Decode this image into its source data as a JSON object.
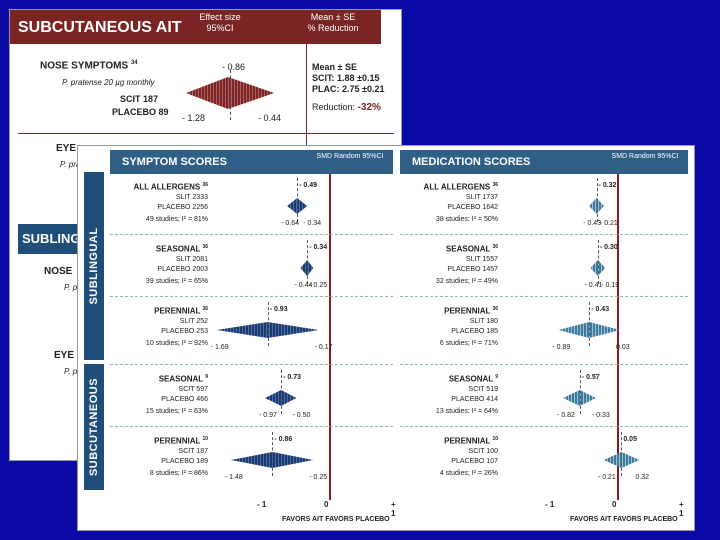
{
  "back_slide": {
    "title": "SUBCUTANEOUS AIT",
    "col1": "Effect size",
    "col1b": "95%CI",
    "col2": "Mean ± SE",
    "col2b": "% Reduction",
    "nose_title": "NOSE SYMPTOMS",
    "nose_ref": "34",
    "nose_species": "P. pratense 20 µg monthly",
    "nose_scit": "SCIT 187",
    "nose_placebo": "PLACEBO 89",
    "nose_es": "- 0.86",
    "nose_lo": "- 1.28",
    "nose_hi": "- 0.44",
    "stats_title": "Mean ± SE",
    "stats_scit": "SCIT: 1.88 ±0.15",
    "stats_plac": "PLAC: 2.75 ±0.21",
    "reduction_label": "Reduction:",
    "reduction_value": "-32%",
    "eye_title": "EYE",
    "eye_species": "P. prate",
    "subling_title": "SUBLING",
    "nose2": "NOSE",
    "pp1": "P. p",
    "eye2": "EYE",
    "pp2": "P. p"
  },
  "front_slide": {
    "side_top": "SUBLINGUAL",
    "side_bottom": "SUBCUTANEOUS",
    "favors_ait": "FAVORS AIT",
    "favors_placebo": "FAVORS PLACEBO"
  },
  "chart_data": [
    {
      "type": "forest",
      "title": "SYMPTOM SCORES",
      "subtitle": "SMD Random 95%CI",
      "xlim": [
        -1,
        1
      ],
      "x_ticks": [
        "- 1",
        "0",
        "+ 1"
      ],
      "rows": [
        {
          "group": "SUBLINGUAL",
          "label": "ALL ALLERGENS",
          "ref": "36",
          "n1": "SLIT 2333",
          "n2": "PLACEBO 2256",
          "studies": "49 studies; I² = 81%",
          "es": -0.49,
          "lo": -0.64,
          "hi": -0.34,
          "es_text": "- 0.49",
          "lo_text": "- 0.64",
          "hi_text": "- 0.34"
        },
        {
          "group": "SUBLINGUAL",
          "label": "SEASONAL",
          "ref": "36",
          "n1": "SLIT 2081",
          "n2": "PLACEBO 2003",
          "studies": "39 studies; I² = 65%",
          "es": -0.34,
          "lo": -0.44,
          "hi": -0.25,
          "es_text": "- 0.34",
          "lo_text": "- 0.44",
          "hi_text": "- 0.25"
        },
        {
          "group": "SUBLINGUAL",
          "label": "PERENNIAL",
          "ref": "36",
          "n1": "SLIT 252",
          "n2": "PLACEBO 253",
          "studies": "10 studies; I² = 92%",
          "es": -0.93,
          "lo": -1.69,
          "hi": -0.17,
          "es_text": "- 0.93",
          "lo_text": "- 1.69",
          "hi_text": "- 0.17"
        },
        {
          "group": "SUBCUTANEOUS",
          "label": "SEASONAL",
          "ref": "9",
          "n1": "SCIT 597",
          "n2": "PLACEBO 466",
          "studies": "15 studies; I² = 63%",
          "es": -0.73,
          "lo": -0.97,
          "hi": -0.5,
          "es_text": "- 0.73",
          "lo_text": "- 0.97",
          "hi_text": "- 0.50"
        },
        {
          "group": "SUBCUTANEOUS",
          "label": "PERENNIAL",
          "ref": "10",
          "n1": "SCIT 187",
          "n2": "PLACEBO 189",
          "studies": "8 studies; I² = 86%",
          "es": -0.86,
          "lo": -1.48,
          "hi": -0.25,
          "es_text": "- 0.86",
          "lo_text": "- 1.48",
          "hi_text": "- 0.25"
        }
      ]
    },
    {
      "type": "forest",
      "title": "MEDICATION SCORES",
      "subtitle": "SMD Random 95%CI",
      "xlim": [
        -1,
        1
      ],
      "x_ticks": [
        "- 1",
        "0",
        "+ 1"
      ],
      "rows": [
        {
          "group": "SUBLINGUAL",
          "label": "ALL ALLERGENS",
          "ref": "36",
          "n1": "SLIT 1737",
          "n2": "PLACEBO 1642",
          "studies": "38 studies; I² = 50%",
          "es": -0.32,
          "lo": -0.43,
          "hi": -0.21,
          "es_text": "- 0.32",
          "lo_text": "- 0.43",
          "hi_text": "- 0.21"
        },
        {
          "group": "SUBLINGUAL",
          "label": "SEASONAL",
          "ref": "36",
          "n1": "SLIT 1557",
          "n2": "PLACEBO 1457",
          "studies": "32 studies; I² = 49%",
          "es": -0.3,
          "lo": -0.41,
          "hi": -0.19,
          "es_text": "- 0.30",
          "lo_text": "- 0.41",
          "hi_text": "- 0.19"
        },
        {
          "group": "SUBLINGUAL",
          "label": "PERENNIAL",
          "ref": "36",
          "n1": "SLIT 180",
          "n2": "PLACEBO 185",
          "studies": "6 studies; I² = 71%",
          "es": -0.43,
          "lo": -0.89,
          "hi": 0.03,
          "es_text": "- 0.43",
          "lo_text": "- 0.89",
          "hi_text": "0.03"
        },
        {
          "group": "SUBCUTANEOUS",
          "label": "SEASONAL",
          "ref": "9",
          "n1": "SCIT 519",
          "n2": "PLACEBO 414",
          "studies": "13 studies; I² = 64%",
          "es": -0.57,
          "lo": -0.82,
          "hi": -0.33,
          "es_text": "- 0.57",
          "lo_text": "- 0.82",
          "hi_text": "- 0.33"
        },
        {
          "group": "SUBCUTANEOUS",
          "label": "PERENNIAL",
          "ref": "10",
          "n1": "SCIT 100",
          "n2": "PLACEBO 107",
          "studies": "4 studies; I² = 26%",
          "es": 0.05,
          "lo": -0.21,
          "hi": 0.32,
          "es_text": "0.05",
          "lo_text": "- 0.21",
          "hi_text": "0.32"
        }
      ]
    }
  ],
  "colors": {
    "background": "#0a0aa6",
    "maroon": "#7a2424",
    "header_blue": "#2f5f86",
    "symptom_diamond": "#1c3a6e",
    "medication_diamond": "#3f7a9a",
    "zero_line": "#8b1a1a"
  }
}
